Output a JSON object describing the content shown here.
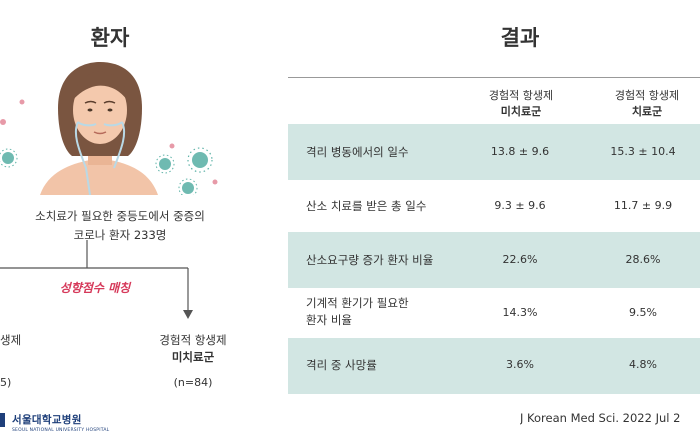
{
  "left": {
    "title": "환자",
    "description_line1": "소치료가 필요한 중등도에서 중증의",
    "description_line2": "코로나 환자 233명",
    "matching_label": "성향점수 매칭",
    "group_left_line1": "생제",
    "group_left_n": "5)",
    "group_right_line1": "경험적 항생제",
    "group_right_line2": "미치료군",
    "group_right_n": "(n=84)"
  },
  "logo": {
    "korean": "서울대학교병원",
    "english": "SEOUL NATIONAL UNIVERSITY HOSPITAL"
  },
  "right": {
    "title": "결과",
    "col1_line1": "경험적 항생제",
    "col1_line2": "미치료군",
    "col2_line1": "경험적 항생제",
    "col2_line2": "치료군",
    "rows": [
      {
        "label": "격리 병동에서의 일수",
        "v1": "13.8 ± 9.6",
        "v2": "15.3 ± 10.4"
      },
      {
        "label": "산소 치료를 받은 총 일수",
        "v1": "9.3 ± 9.6",
        "v2": "11.7 ± 9.9"
      },
      {
        "label": "산소요구량 증가 환자 비율",
        "v1": "22.6%",
        "v2": "28.6%"
      },
      {
        "label_line1": "기계적 환기가 필요한",
        "label_line2": "환자 비율",
        "v1": "14.3%",
        "v2": "9.5%"
      },
      {
        "label": "격리 중 사망률",
        "v1": "3.6%",
        "v2": "4.8%"
      }
    ]
  },
  "citation": "J Korean Med Sci. 2022 Jul 2",
  "colors": {
    "row_shade": "#d2e6e3",
    "accent_pink": "#d6395a",
    "virus_teal": "#5fb3a8",
    "virus_pink": "#e79aa8",
    "logo_blue": "#1e3f7a"
  }
}
